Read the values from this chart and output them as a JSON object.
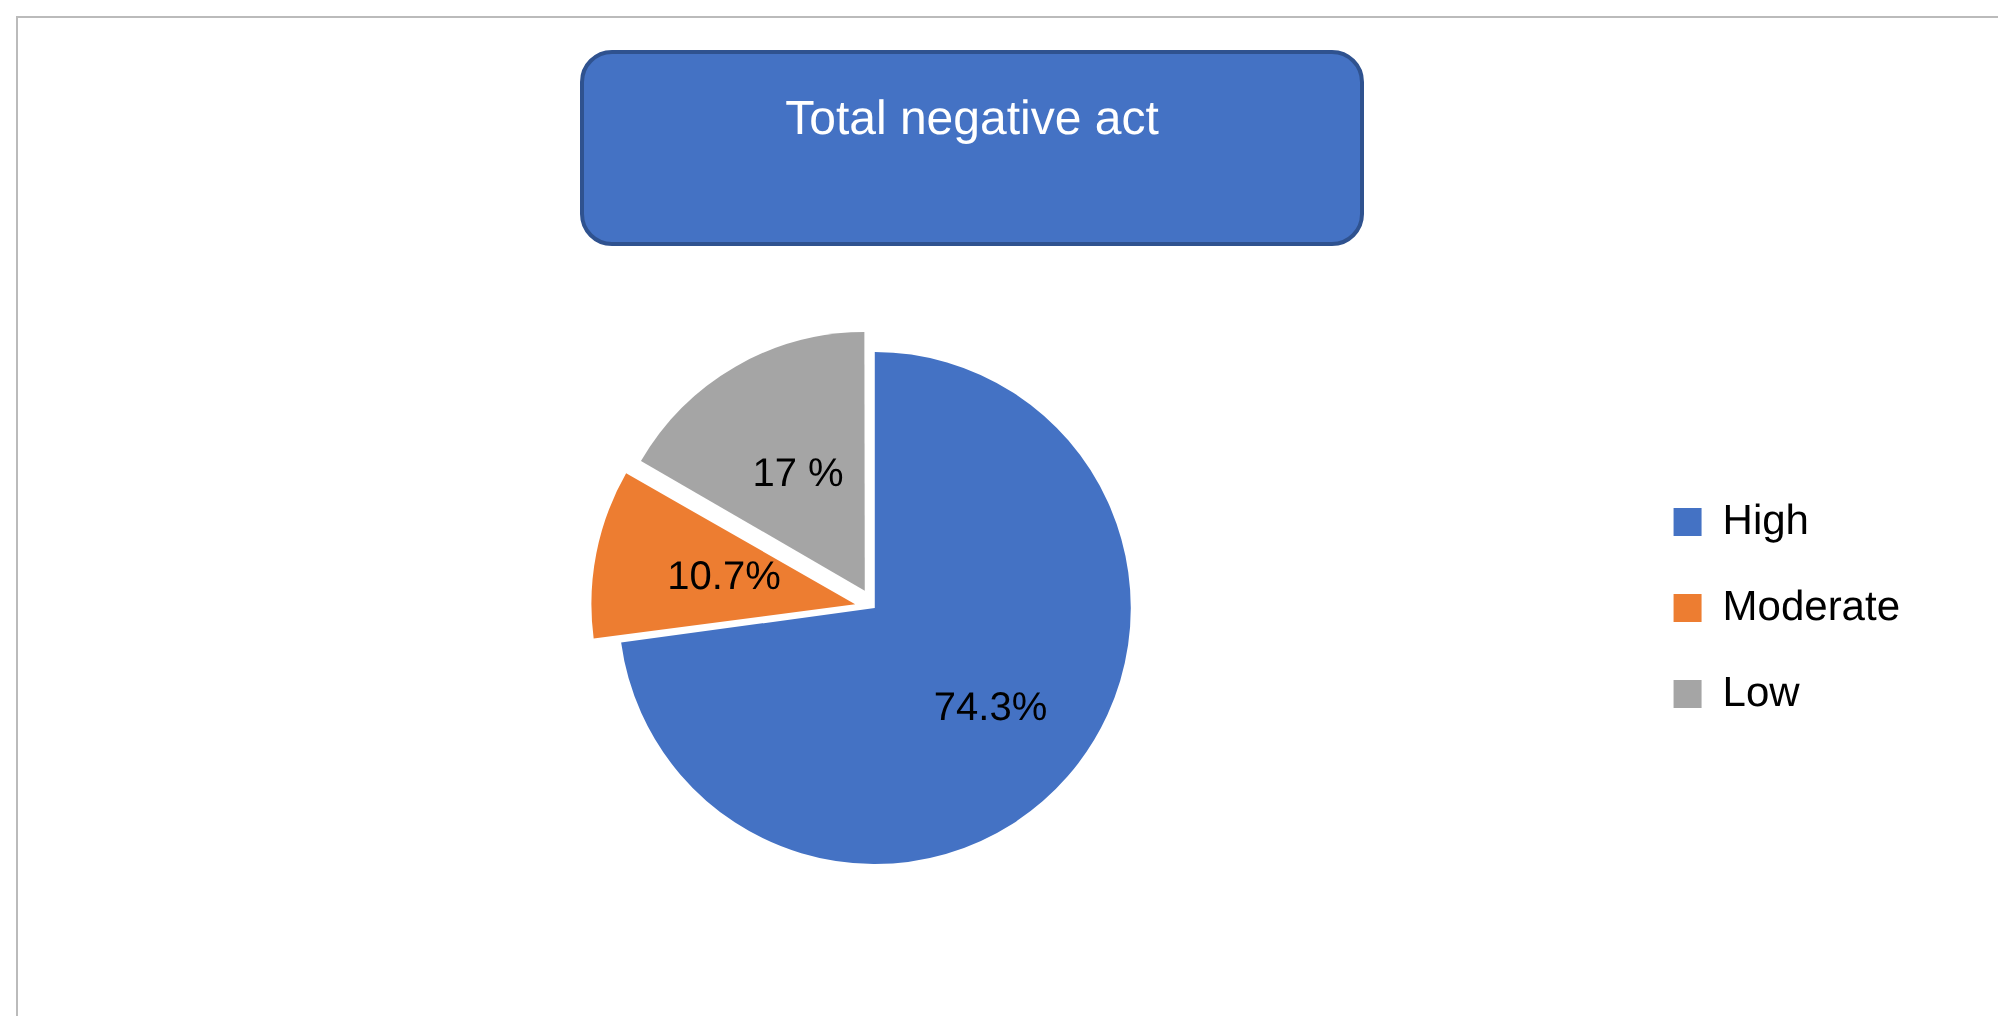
{
  "chart_data": {
    "type": "pie",
    "title": "Total negative act",
    "categories": [
      "High",
      "Moderate",
      "Low"
    ],
    "values": [
      74.3,
      10.7,
      17
    ],
    "colors": [
      "#4472c4",
      "#ed7d31",
      "#a5a5a5"
    ],
    "value_labels": [
      "74.3%",
      "10.7%",
      "17 %"
    ],
    "legend": "right"
  }
}
